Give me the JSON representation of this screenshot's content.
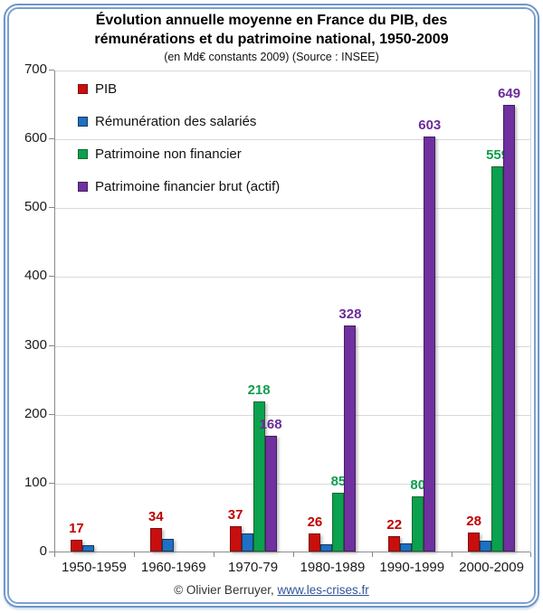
{
  "title_lines": [
    "Évolution annuelle moyenne en France du PIB, des",
    "rémunérations et du patrimoine national, 1950-2009"
  ],
  "subtitle": "(en Md€ constants 2009) (Source : INSEE)",
  "footer": {
    "copyright": "© Olivier Berruyer,",
    "link_text": "www.les-crises.fr"
  },
  "colors": {
    "frame": "#6E96C8",
    "grid": "#D9D9D9",
    "axis": "#8C8C8C",
    "plot_border_light": "#D6D6D6",
    "link": "#2F5496"
  },
  "chart_data": {
    "type": "bar",
    "title": "Évolution annuelle moyenne en France du PIB, des rémunérations et du patrimoine national, 1950-2009",
    "subtitle": "(en Md€ constants 2009) (Source : INSEE)",
    "categories": [
      "1950-1959",
      "1960-1969",
      "1970-79",
      "1980-1989",
      "1990-1999",
      "2000-2009"
    ],
    "series": [
      {
        "name": "PIB",
        "color": "#C90E0E",
        "border_color": "#7C1111",
        "label_color": "#C00000",
        "values": [
          17,
          34,
          37,
          26,
          22,
          28
        ],
        "data_labels": [
          17,
          34,
          37,
          26,
          22,
          28
        ]
      },
      {
        "name": "Rémunération des salariés",
        "color": "#1D70C3",
        "border_color": "#17375E",
        "label_color": "#1D70C3",
        "values": [
          9,
          18,
          26,
          10,
          12,
          16
        ],
        "data_labels": [
          null,
          null,
          null,
          null,
          null,
          null
        ]
      },
      {
        "name": "Patrimoine non financier",
        "color": "#0AA14F",
        "border_color": "#19672D",
        "label_color": "#0F9D4E",
        "values": [
          0,
          0,
          218,
          85,
          80,
          559
        ],
        "data_labels": [
          null,
          null,
          218,
          85,
          80,
          559
        ]
      },
      {
        "name": "Patrimoine financier brut (actif)",
        "color": "#7030A0",
        "border_color": "#41215E",
        "label_color": "#6B2C98",
        "values": [
          0,
          0,
          168,
          328,
          603,
          649
        ],
        "data_labels": [
          null,
          null,
          168,
          328,
          603,
          649
        ]
      }
    ],
    "ylim": [
      0,
      700
    ],
    "yticks": [
      0,
      100,
      200,
      300,
      400,
      500,
      600,
      700
    ],
    "grid": true,
    "legend_position": "top-left"
  }
}
